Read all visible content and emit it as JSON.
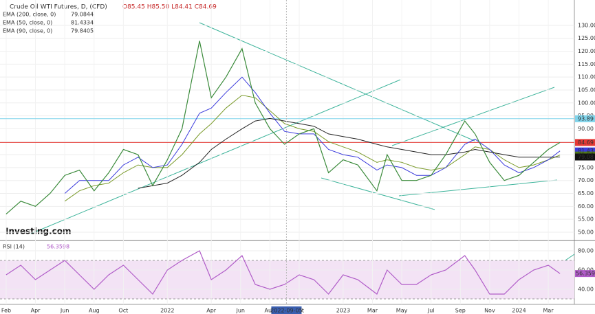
{
  "chart_data": [
    {
      "type": "line",
      "title": "Crude Oil WTI Futures, D, (CFD)",
      "ohlc": "O85.45 H85.50 L84.41 C84.69",
      "logo": "Investing.com",
      "x": [
        0,
        1,
        2,
        3,
        4,
        5,
        6,
        7,
        8,
        9,
        10,
        11,
        12,
        13.2,
        14,
        15,
        16.1,
        17,
        18,
        19,
        20,
        21,
        22,
        23,
        24,
        25.3,
        26,
        27,
        28,
        29,
        30,
        31.3,
        32,
        33,
        34,
        35,
        36,
        37,
        37.8
      ],
      "xlim": [
        -0.42,
        38.78
      ],
      "ylim": [
        46.8,
        139.8
      ],
      "yticks": [
        {
          "value": 50,
          "label": "50.00"
        },
        {
          "value": 55,
          "label": "55.00"
        },
        {
          "value": 60,
          "label": "60.00"
        },
        {
          "value": 65,
          "label": "65.00"
        },
        {
          "value": 70,
          "label": "70.00"
        },
        {
          "value": 75,
          "label": "75.00"
        },
        {
          "value": 80,
          "label": "80.00"
        },
        {
          "value": 85,
          "label": "85.00"
        },
        {
          "value": 90,
          "label": "90.00"
        },
        {
          "value": 95,
          "label": "95.00"
        },
        {
          "value": 100,
          "label": "100.00"
        },
        {
          "value": 105,
          "label": "105.00"
        },
        {
          "value": 110,
          "label": "110.00"
        },
        {
          "value": 115,
          "label": "115.00"
        },
        {
          "value": 120,
          "label": "120.00"
        },
        {
          "value": 125,
          "label": "125.00"
        },
        {
          "value": 130,
          "label": "130.00"
        }
      ],
      "series": [
        {
          "color": "#3a8a3a",
          "values": [
            57,
            62,
            60,
            65,
            72,
            74,
            66,
            73,
            82,
            80,
            68,
            78,
            90,
            124,
            102,
            110,
            121,
            100,
            90,
            84,
            88,
            90,
            73,
            78,
            76,
            66,
            80,
            70,
            70,
            72,
            80,
            93,
            88,
            77,
            70,
            72,
            77,
            82,
            84.69
          ]
        },
        {
          "name": "EMA (200, close, 0)",
          "value_label": "79.0844",
          "color": "#222222",
          "values": [
            null,
            null,
            null,
            null,
            null,
            null,
            null,
            null,
            null,
            67,
            68,
            69,
            72,
            77,
            82,
            86,
            90,
            93,
            94,
            93,
            92,
            91,
            88,
            87,
            86,
            84,
            83,
            82,
            81,
            80,
            80,
            81,
            82,
            81,
            80,
            79,
            79,
            79,
            79.0844
          ]
        },
        {
          "name": "EMA (50, close, 0)",
          "value_label": "81.4334",
          "color": "#3b3bdc",
          "values": [
            null,
            null,
            null,
            null,
            65,
            70,
            70,
            70,
            76,
            79,
            75,
            76,
            84,
            96,
            98,
            104,
            110,
            104,
            96,
            89,
            88,
            88,
            82,
            80,
            79,
            74,
            76,
            75,
            72,
            72,
            75,
            84,
            86,
            82,
            76,
            73,
            75,
            78,
            81.43
          ]
        },
        {
          "name": "EMA (90, close, 0)",
          "value_label": "79.8405",
          "color": "#7a9a2a",
          "values": [
            null,
            null,
            null,
            null,
            62,
            66,
            68,
            69,
            73,
            76,
            75,
            75,
            80,
            88,
            92,
            98,
            103,
            102,
            97,
            92,
            90,
            89,
            85,
            83,
            81,
            77,
            78,
            77,
            75,
            74,
            75,
            80,
            83,
            82,
            78,
            75,
            76,
            78,
            79.84
          ]
        }
      ],
      "markers": [
        {
          "value": 93.89,
          "color": "#7fd3ea",
          "line": true
        },
        {
          "value": 84.69,
          "color": "#e53935",
          "line": true
        },
        {
          "value": 81.43,
          "color": "#3b3bdc",
          "line": false
        },
        {
          "value": 79.84,
          "color": "#4f7a1a",
          "line": false
        },
        {
          "value": 79.08,
          "color": "#111111",
          "line": false
        }
      ]
    },
    {
      "type": "line",
      "title": "RSI (14)",
      "value_label": "56.3598",
      "ylim": [
        24.3,
        89.3
      ],
      "yticks": [
        {
          "value": 40,
          "label": "40.00"
        },
        {
          "value": 60,
          "label": "60.00"
        },
        {
          "value": 80,
          "label": "80.00"
        }
      ],
      "bands": [
        30,
        70
      ],
      "xticks": [
        {
          "value": 0,
          "label": "Feb"
        },
        {
          "value": 2,
          "label": "Apr"
        },
        {
          "value": 4,
          "label": "Jun"
        },
        {
          "value": 6,
          "label": "Aug"
        },
        {
          "value": 8,
          "label": "Oct"
        },
        {
          "value": 11,
          "label": "2022"
        },
        {
          "value": 14,
          "label": "Apr"
        },
        {
          "value": 16,
          "label": "Jun"
        },
        {
          "value": 18,
          "label": "Aug"
        },
        {
          "value": 20,
          "label": "Oct"
        },
        {
          "value": 23,
          "label": "2023"
        },
        {
          "value": 25,
          "label": "Mar"
        },
        {
          "value": 27,
          "label": "May"
        },
        {
          "value": 29,
          "label": "Jul"
        },
        {
          "value": 31,
          "label": "Sep"
        },
        {
          "value": 33,
          "label": "Nov"
        },
        {
          "value": 35,
          "label": "2024"
        },
        {
          "value": 37,
          "label": "Mar"
        }
      ],
      "cursor": {
        "value": 19.13,
        "label": "2022-09-05"
      },
      "series": [
        {
          "color": "#b05cc8",
          "values": [
            55,
            65,
            50,
            60,
            70,
            55,
            40,
            55,
            65,
            50,
            35,
            60,
            70,
            80,
            50,
            60,
            75,
            45,
            40,
            45,
            55,
            50,
            35,
            55,
            50,
            35,
            60,
            45,
            45,
            55,
            60,
            75,
            60,
            35,
            35,
            50,
            60,
            65,
            56.3598
          ]
        }
      ]
    }
  ]
}
